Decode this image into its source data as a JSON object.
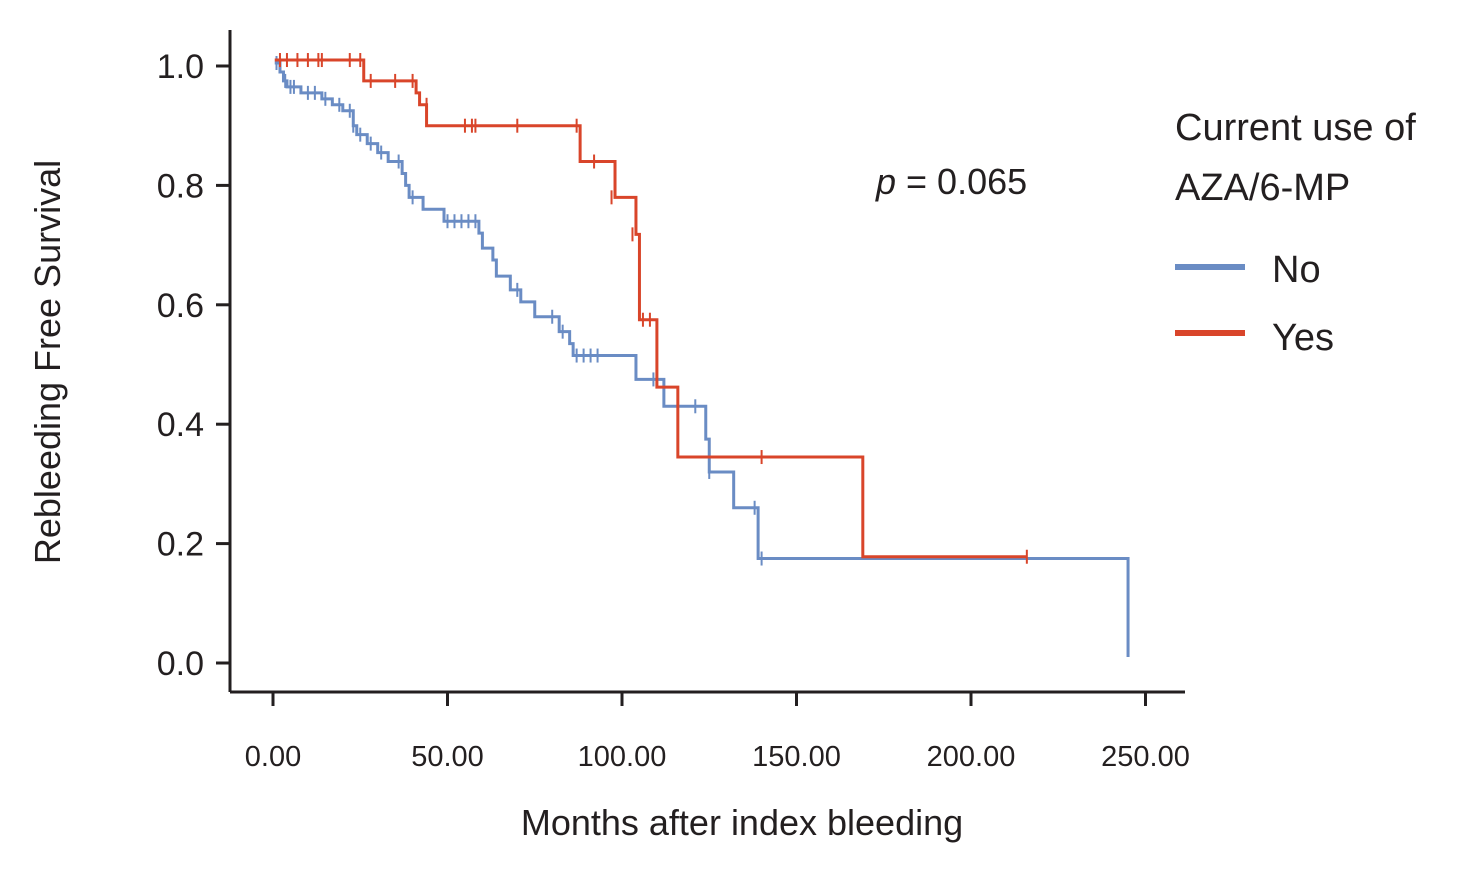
{
  "chart_data": {
    "type": "line",
    "subtype": "kaplan-meier",
    "title": "",
    "xlabel": "Months after index bleeding",
    "ylabel": "Rebleeding Free Survival",
    "xlim": [
      -12,
      260
    ],
    "ylim": [
      -0.05,
      1.06
    ],
    "xticks": [
      0,
      50,
      100,
      150,
      200,
      250
    ],
    "xtick_labels": [
      "0.00",
      "50.00",
      "100.00",
      "150.00",
      "200.00",
      "250.00"
    ],
    "yticks": [
      0.0,
      0.2,
      0.4,
      0.6,
      0.8,
      1.0
    ],
    "ytick_labels": [
      "0.0",
      "0.2",
      "0.4",
      "0.6",
      "0.8",
      "1.0"
    ],
    "grid": false,
    "legend": {
      "title_lines": [
        "Current use of",
        "AZA/6-MP"
      ],
      "position": "right"
    },
    "annotation": {
      "italic": "p",
      "rest": " = 0.065"
    },
    "series": [
      {
        "name": "No",
        "color": "#6a8cc4",
        "steps": [
          [
            0.5,
            1.005
          ],
          [
            2,
            0.99
          ],
          [
            3,
            0.975
          ],
          [
            4,
            0.965
          ],
          [
            8,
            0.955
          ],
          [
            14,
            0.945
          ],
          [
            17,
            0.935
          ],
          [
            20,
            0.925
          ],
          [
            23,
            0.9
          ],
          [
            24,
            0.885
          ],
          [
            27,
            0.87
          ],
          [
            30,
            0.855
          ],
          [
            33,
            0.84
          ],
          [
            37,
            0.82
          ],
          [
            38,
            0.8
          ],
          [
            39,
            0.78
          ],
          [
            43,
            0.76
          ],
          [
            49,
            0.74
          ],
          [
            59,
            0.72
          ],
          [
            60,
            0.695
          ],
          [
            63,
            0.675
          ],
          [
            64,
            0.648
          ],
          [
            68,
            0.625
          ],
          [
            71,
            0.605
          ],
          [
            75,
            0.58
          ],
          [
            82,
            0.555
          ],
          [
            85,
            0.535
          ],
          [
            86,
            0.515
          ],
          [
            104,
            0.475
          ],
          [
            112,
            0.43
          ],
          [
            124,
            0.375
          ],
          [
            125,
            0.32
          ],
          [
            132,
            0.26
          ],
          [
            139,
            0.175
          ],
          [
            245,
            0.01
          ]
        ],
        "end_x": 245,
        "censored": [
          [
            1,
            1.005
          ],
          [
            3.5,
            0.975
          ],
          [
            5,
            0.965
          ],
          [
            6,
            0.965
          ],
          [
            10,
            0.955
          ],
          [
            12,
            0.955
          ],
          [
            15,
            0.945
          ],
          [
            19,
            0.935
          ],
          [
            22,
            0.925
          ],
          [
            23,
            0.9
          ],
          [
            25,
            0.885
          ],
          [
            28,
            0.87
          ],
          [
            31,
            0.855
          ],
          [
            36,
            0.84
          ],
          [
            40,
            0.78
          ],
          [
            50,
            0.74
          ],
          [
            52,
            0.74
          ],
          [
            54,
            0.74
          ],
          [
            56,
            0.74
          ],
          [
            58,
            0.74
          ],
          [
            70,
            0.625
          ],
          [
            80,
            0.58
          ],
          [
            83,
            0.555
          ],
          [
            87,
            0.515
          ],
          [
            89,
            0.515
          ],
          [
            91,
            0.515
          ],
          [
            93,
            0.515
          ],
          [
            109,
            0.475
          ],
          [
            121,
            0.43
          ],
          [
            125,
            0.32
          ],
          [
            138,
            0.26
          ],
          [
            140,
            0.175
          ]
        ]
      },
      {
        "name": "Yes",
        "color": "#d9452a",
        "steps": [
          [
            0.5,
            1.01
          ],
          [
            26,
            0.975
          ],
          [
            41,
            0.955
          ],
          [
            42,
            0.935
          ],
          [
            44,
            0.9
          ],
          [
            88,
            0.84
          ],
          [
            98,
            0.78
          ],
          [
            104,
            0.718
          ],
          [
            105,
            0.575
          ],
          [
            110,
            0.462
          ],
          [
            116,
            0.345
          ],
          [
            169,
            0.178
          ]
        ],
        "end_x": 216,
        "censored": [
          [
            2,
            1.01
          ],
          [
            4,
            1.01
          ],
          [
            7,
            1.01
          ],
          [
            10,
            1.01
          ],
          [
            13,
            1.01
          ],
          [
            14,
            1.01
          ],
          [
            22,
            1.01
          ],
          [
            25,
            1.01
          ],
          [
            28,
            0.975
          ],
          [
            35,
            0.975
          ],
          [
            40,
            0.975
          ],
          [
            44,
            0.935
          ],
          [
            55,
            0.9
          ],
          [
            57,
            0.9
          ],
          [
            58,
            0.9
          ],
          [
            70,
            0.9
          ],
          [
            87,
            0.9
          ],
          [
            92,
            0.84
          ],
          [
            97,
            0.78
          ],
          [
            103,
            0.718
          ],
          [
            106,
            0.575
          ],
          [
            108,
            0.575
          ],
          [
            140,
            0.345
          ],
          [
            216,
            0.178
          ]
        ]
      }
    ]
  }
}
